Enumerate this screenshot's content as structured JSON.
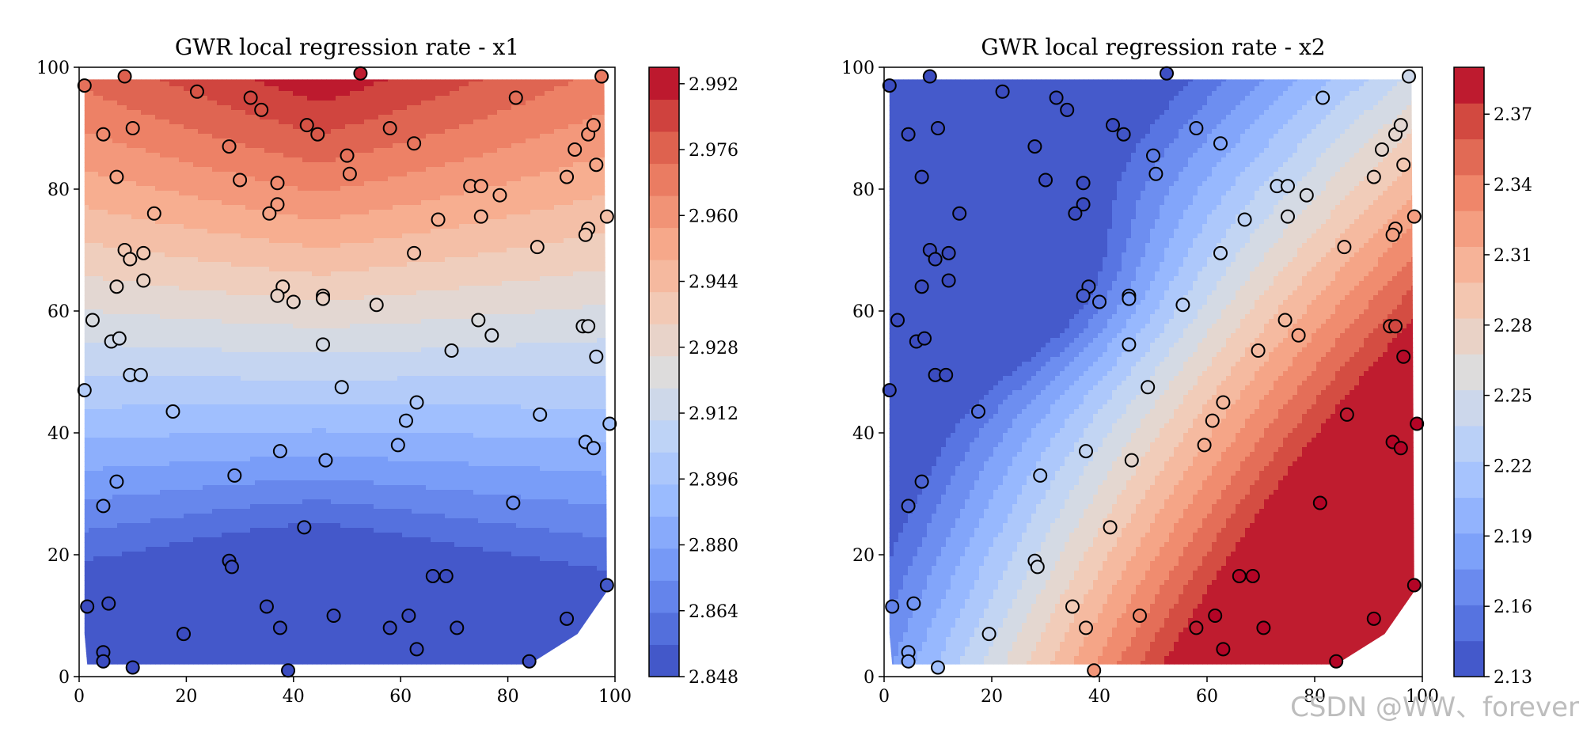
{
  "watermark": "CSDN @WW、forever",
  "colormap": [
    "#3b4cc0",
    "#5a78e4",
    "#7b9ff9",
    "#9ebeff",
    "#c0d4f5",
    "#dddcdc",
    "#f2cbb7",
    "#f7ac8e",
    "#ee8468",
    "#d65244",
    "#b40426"
  ],
  "chart_data": [
    {
      "type": "contour",
      "title": "GWR local regression rate - x1",
      "xlim": [
        0,
        100
      ],
      "ylim": [
        0,
        100
      ],
      "xticks": [
        0,
        20,
        40,
        60,
        80,
        100
      ],
      "yticks": [
        0,
        20,
        40,
        60,
        80,
        100
      ],
      "xtick_labels": [
        "0",
        "20",
        "40",
        "60",
        "80",
        "100"
      ],
      "ytick_labels": [
        "0",
        "20",
        "40",
        "60",
        "80",
        "100"
      ],
      "colorbar_ticks": [
        2.848,
        2.864,
        2.88,
        2.896,
        2.912,
        2.928,
        2.944,
        2.96,
        2.976,
        2.992
      ],
      "colorbar_labels": [
        "2.848",
        "2.864",
        "2.880",
        "2.896",
        "2.912",
        "2.928",
        "2.944",
        "2.960",
        "2.976",
        "2.992"
      ],
      "vmin": 2.848,
      "vmax": 2.996,
      "pattern": "x1",
      "points": [
        [
          1,
          97
        ],
        [
          8.5,
          98.5
        ],
        [
          52.5,
          99
        ],
        [
          97.5,
          98.5
        ],
        [
          22,
          96
        ],
        [
          32,
          95
        ],
        [
          34,
          93
        ],
        [
          4.5,
          89
        ],
        [
          10,
          90
        ],
        [
          42.5,
          90.5
        ],
        [
          44.5,
          89
        ],
        [
          58,
          90
        ],
        [
          62.5,
          87.5
        ],
        [
          81.5,
          95
        ],
        [
          95,
          89
        ],
        [
          96,
          90.5
        ],
        [
          92.5,
          86.5
        ],
        [
          28,
          87
        ],
        [
          50,
          85.5
        ],
        [
          50.5,
          82.5
        ],
        [
          7,
          82
        ],
        [
          30,
          81.5
        ],
        [
          37,
          81
        ],
        [
          73,
          80.5
        ],
        [
          75,
          80.5
        ],
        [
          78.5,
          79
        ],
        [
          91,
          82
        ],
        [
          96.5,
          84
        ],
        [
          14,
          76
        ],
        [
          37,
          77.5
        ],
        [
          35.5,
          76
        ],
        [
          67,
          75
        ],
        [
          75,
          75.5
        ],
        [
          98.5,
          75.5
        ],
        [
          95,
          73.5
        ],
        [
          94.5,
          72.5
        ],
        [
          8.5,
          70
        ],
        [
          12,
          69.5
        ],
        [
          9.5,
          68.5
        ],
        [
          62.5,
          69.5
        ],
        [
          85.5,
          70.5
        ],
        [
          7,
          64
        ],
        [
          12,
          65
        ],
        [
          38,
          64
        ],
        [
          37,
          62.5
        ],
        [
          40,
          61.5
        ],
        [
          45.5,
          62.5
        ],
        [
          45.5,
          62
        ],
        [
          55.5,
          61
        ],
        [
          2.5,
          58.5
        ],
        [
          94,
          57.5
        ],
        [
          95,
          57.5
        ],
        [
          74.5,
          58.5
        ],
        [
          77,
          56
        ],
        [
          6,
          55
        ],
        [
          7.5,
          55.5
        ],
        [
          45.5,
          54.5
        ],
        [
          69.5,
          53.5
        ],
        [
          96.5,
          52.5
        ],
        [
          9.5,
          49.5
        ],
        [
          11.5,
          49.5
        ],
        [
          1,
          47
        ],
        [
          49,
          47.5
        ],
        [
          17.5,
          43.5
        ],
        [
          63,
          45
        ],
        [
          61,
          42
        ],
        [
          86,
          43
        ],
        [
          99,
          41.5
        ],
        [
          94.5,
          38.5
        ],
        [
          96,
          37.5
        ],
        [
          37.5,
          37
        ],
        [
          59.5,
          38
        ],
        [
          46,
          35.5
        ],
        [
          7,
          32
        ],
        [
          29,
          33
        ],
        [
          4.5,
          28
        ],
        [
          81,
          28.5
        ],
        [
          42,
          24.5
        ],
        [
          28,
          19
        ],
        [
          28.5,
          18
        ],
        [
          66,
          16.5
        ],
        [
          68.5,
          16.5
        ],
        [
          98.5,
          15
        ],
        [
          1.5,
          11.5
        ],
        [
          5.5,
          12
        ],
        [
          35,
          11.5
        ],
        [
          37.5,
          8
        ],
        [
          47.5,
          10
        ],
        [
          58,
          8
        ],
        [
          61.5,
          10
        ],
        [
          70.5,
          8
        ],
        [
          91,
          9.5
        ],
        [
          63,
          4.5
        ],
        [
          4.5,
          4
        ],
        [
          4.5,
          2.5
        ],
        [
          10,
          1.5
        ],
        [
          19.5,
          7
        ],
        [
          39,
          1
        ],
        [
          84,
          2.5
        ]
      ]
    },
    {
      "type": "contour",
      "title": "GWR local regression rate - x2",
      "xlim": [
        0,
        100
      ],
      "ylim": [
        0,
        100
      ],
      "xticks": [
        0,
        20,
        40,
        60,
        80,
        100
      ],
      "yticks": [
        0,
        20,
        40,
        60,
        80,
        100
      ],
      "xtick_labels": [
        "0",
        "20",
        "40",
        "60",
        "80",
        "100"
      ],
      "ytick_labels": [
        "0",
        "20",
        "40",
        "60",
        "80",
        "100"
      ],
      "colorbar_ticks": [
        2.13,
        2.16,
        2.19,
        2.22,
        2.25,
        2.28,
        2.31,
        2.34,
        2.37
      ],
      "colorbar_labels": [
        "2.13",
        "2.16",
        "2.19",
        "2.22",
        "2.25",
        "2.28",
        "2.31",
        "2.34",
        "2.37"
      ],
      "vmin": 2.13,
      "vmax": 2.39,
      "pattern": "x2",
      "points": [
        [
          1,
          97
        ],
        [
          8.5,
          98.5
        ],
        [
          52.5,
          99
        ],
        [
          97.5,
          98.5
        ],
        [
          22,
          96
        ],
        [
          32,
          95
        ],
        [
          34,
          93
        ],
        [
          4.5,
          89
        ],
        [
          10,
          90
        ],
        [
          42.5,
          90.5
        ],
        [
          44.5,
          89
        ],
        [
          58,
          90
        ],
        [
          62.5,
          87.5
        ],
        [
          81.5,
          95
        ],
        [
          95,
          89
        ],
        [
          96,
          90.5
        ],
        [
          92.5,
          86.5
        ],
        [
          28,
          87
        ],
        [
          50,
          85.5
        ],
        [
          50.5,
          82.5
        ],
        [
          7,
          82
        ],
        [
          30,
          81.5
        ],
        [
          37,
          81
        ],
        [
          73,
          80.5
        ],
        [
          75,
          80.5
        ],
        [
          78.5,
          79
        ],
        [
          91,
          82
        ],
        [
          96.5,
          84
        ],
        [
          14,
          76
        ],
        [
          37,
          77.5
        ],
        [
          35.5,
          76
        ],
        [
          67,
          75
        ],
        [
          75,
          75.5
        ],
        [
          98.5,
          75.5
        ],
        [
          95,
          73.5
        ],
        [
          94.5,
          72.5
        ],
        [
          8.5,
          70
        ],
        [
          12,
          69.5
        ],
        [
          9.5,
          68.5
        ],
        [
          62.5,
          69.5
        ],
        [
          85.5,
          70.5
        ],
        [
          7,
          64
        ],
        [
          12,
          65
        ],
        [
          38,
          64
        ],
        [
          37,
          62.5
        ],
        [
          40,
          61.5
        ],
        [
          45.5,
          62.5
        ],
        [
          45.5,
          62
        ],
        [
          55.5,
          61
        ],
        [
          2.5,
          58.5
        ],
        [
          94,
          57.5
        ],
        [
          95,
          57.5
        ],
        [
          74.5,
          58.5
        ],
        [
          77,
          56
        ],
        [
          6,
          55
        ],
        [
          7.5,
          55.5
        ],
        [
          45.5,
          54.5
        ],
        [
          69.5,
          53.5
        ],
        [
          96.5,
          52.5
        ],
        [
          9.5,
          49.5
        ],
        [
          11.5,
          49.5
        ],
        [
          1,
          47
        ],
        [
          49,
          47.5
        ],
        [
          17.5,
          43.5
        ],
        [
          63,
          45
        ],
        [
          61,
          42
        ],
        [
          86,
          43
        ],
        [
          99,
          41.5
        ],
        [
          94.5,
          38.5
        ],
        [
          96,
          37.5
        ],
        [
          37.5,
          37
        ],
        [
          59.5,
          38
        ],
        [
          46,
          35.5
        ],
        [
          7,
          32
        ],
        [
          29,
          33
        ],
        [
          4.5,
          28
        ],
        [
          81,
          28.5
        ],
        [
          42,
          24.5
        ],
        [
          28,
          19
        ],
        [
          28.5,
          18
        ],
        [
          66,
          16.5
        ],
        [
          68.5,
          16.5
        ],
        [
          98.5,
          15
        ],
        [
          1.5,
          11.5
        ],
        [
          5.5,
          12
        ],
        [
          35,
          11.5
        ],
        [
          37.5,
          8
        ],
        [
          47.5,
          10
        ],
        [
          58,
          8
        ],
        [
          61.5,
          10
        ],
        [
          70.5,
          8
        ],
        [
          91,
          9.5
        ],
        [
          63,
          4.5
        ],
        [
          4.5,
          4
        ],
        [
          4.5,
          2.5
        ],
        [
          10,
          1.5
        ],
        [
          19.5,
          7
        ],
        [
          39,
          1
        ],
        [
          84,
          2.5
        ]
      ]
    }
  ]
}
